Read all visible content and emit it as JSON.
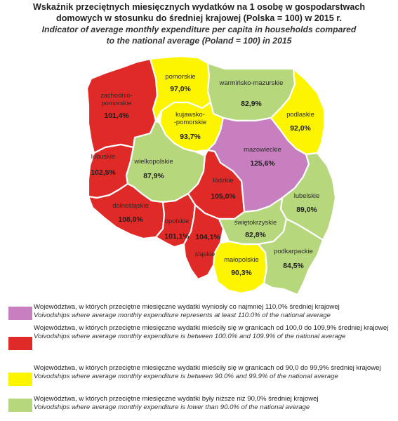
{
  "title": {
    "pl": "Wskaźnik przeciętnych miesięcznych wydatków na 1 osobę w gospodarstwach\ndomowych w stosunku do średniej krajowej (Polska = 100) w 2015 r.",
    "en": "Indicator of average monthly expenditure per capita in households compared\nto the national average (Poland = 100) in 2015"
  },
  "colors": {
    "purple": "#c77fc0",
    "red": "#e02a27",
    "yellow": "#fdf400",
    "green": "#b7d77d"
  },
  "regions": [
    {
      "id": "zachodniopomorskie",
      "name": "zachodnio-\npomorskie",
      "value": "101,4%",
      "class": "red"
    },
    {
      "id": "pomorskie",
      "name": "pomorskie",
      "value": "97,0%",
      "class": "yellow"
    },
    {
      "id": "warminsko-mazurskie",
      "name": "warmińsko-mazurskie",
      "value": "82,9%",
      "class": "green"
    },
    {
      "id": "podlaskie",
      "name": "podlaskie",
      "value": "92,0%",
      "class": "yellow"
    },
    {
      "id": "kujawsko-pomorskie",
      "name": "kujawsko-\n-pomorskie",
      "value": "93,7%",
      "class": "yellow"
    },
    {
      "id": "lubuskie",
      "name": "lubuskie",
      "value": "102,5%",
      "class": "red"
    },
    {
      "id": "wielkopolskie",
      "name": "wielkopolskie",
      "value": "87,9%",
      "class": "green"
    },
    {
      "id": "mazowieckie",
      "name": "mazowieckie",
      "value": "125,6%",
      "class": "purple"
    },
    {
      "id": "lodzkie",
      "name": "łódzkie",
      "value": "105,0%",
      "class": "red"
    },
    {
      "id": "lubelskie",
      "name": "lubelskie",
      "value": "89,0%",
      "class": "green"
    },
    {
      "id": "dolnoslaskie",
      "name": "dolnośląskie",
      "value": "108,0%",
      "class": "red"
    },
    {
      "id": "opolskie",
      "name": "opolskie",
      "value": "101,1%",
      "class": "red"
    },
    {
      "id": "slaskie",
      "name": "śląskie",
      "value": "104,1%",
      "class": "red"
    },
    {
      "id": "swietokrzyskie",
      "name": "świętokrzyskie",
      "value": "82,8%",
      "class": "green"
    },
    {
      "id": "malopolskie",
      "name": "małopolskie",
      "value": "90,3%",
      "class": "yellow"
    },
    {
      "id": "podkarpackie",
      "name": "podkarpackie",
      "value": "84,5%",
      "class": "green"
    }
  ],
  "legend": [
    {
      "class": "purple",
      "pl": "Województwa, w których przeciętne miesięczne wydatki wyniosły co najmniej 110,0% średniej krajowej",
      "en": "Voivodships where average monthly expenditure represents at least 110.0% of the national average"
    },
    {
      "class": "red",
      "pl": "Województwa, w których przeciętne miesięczne wydatki mieściły się w granicach od 100,0 do 109,9% średniej krajowej",
      "en": "Voivodships where average monthly expenditure is between 100.0% and 109.9% of the national average"
    },
    {
      "class": "yellow",
      "pl": "Województwa, w których przeciętne miesięczne wydatki mieściły się w granicach od 90,0 do 99,9% średniej krajowej",
      "en": "Voivodships where average monthly expenditure is between 90.0% and 99.9% of the national average"
    },
    {
      "class": "green",
      "pl": "Województwa, w których przeciętne miesięczne wydatki były niższe niż 90,0% średniej krajowej",
      "en": "Voivodships where average monthly expenditure is lower than 90.0% of the national average"
    }
  ]
}
